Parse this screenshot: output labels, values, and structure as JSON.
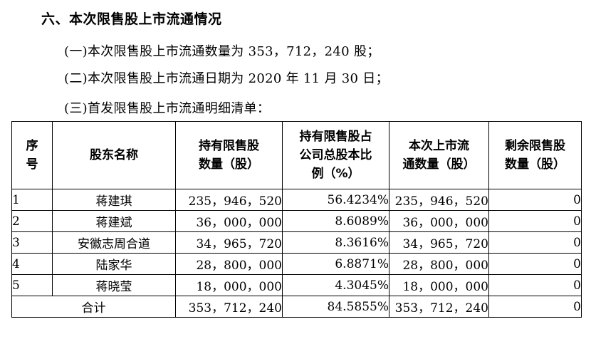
{
  "heading": "六、本次限售股上市流通情况",
  "paragraphs": {
    "p1": "(一)本次限售股上市流通数量为 353，712，240 股；",
    "p2": "(二)本次限售股上市流通日期为 2020 年 11 月 30 日；",
    "p3": "(三)首发限售股上市流通明细清单："
  },
  "table": {
    "headers": {
      "col1": [
        "序",
        "号"
      ],
      "col2": [
        "股东名称"
      ],
      "col3": [
        "持有限售股",
        "数量（股）"
      ],
      "col4": [
        "持有限售股占",
        "公司总股本比",
        "例（%）"
      ],
      "col5": [
        "本次上市流",
        "通数量（股）"
      ],
      "col6": [
        "剩余限售股",
        "数量（股）"
      ]
    },
    "rows": [
      {
        "idx": "1",
        "name": "蒋建琪",
        "held": "235，946，520",
        "ratio": "56.4234%",
        "listed": "235，946，520",
        "remain": "0"
      },
      {
        "idx": "2",
        "name": "蒋建斌",
        "held": "36，000，000",
        "ratio": "8.6089%",
        "listed": "36，000，000",
        "remain": "0"
      },
      {
        "idx": "3",
        "name": "安徽志周合道",
        "held": "34，965，720",
        "ratio": "8.3616%",
        "listed": "34，965，720",
        "remain": "0"
      },
      {
        "idx": "4",
        "name": "陆家华",
        "held": "28，800，000",
        "ratio": "6.8871%",
        "listed": "28，800，000",
        "remain": "0"
      },
      {
        "idx": "5",
        "name": "蒋晓莹",
        "held": "18，000，000",
        "ratio": "4.3045%",
        "listed": "18，000，000",
        "remain": "0"
      }
    ],
    "total": {
      "label": "合计",
      "held": "353，712，240",
      "ratio": "84.5855%",
      "listed": "353，712，240",
      "remain": "0"
    }
  }
}
